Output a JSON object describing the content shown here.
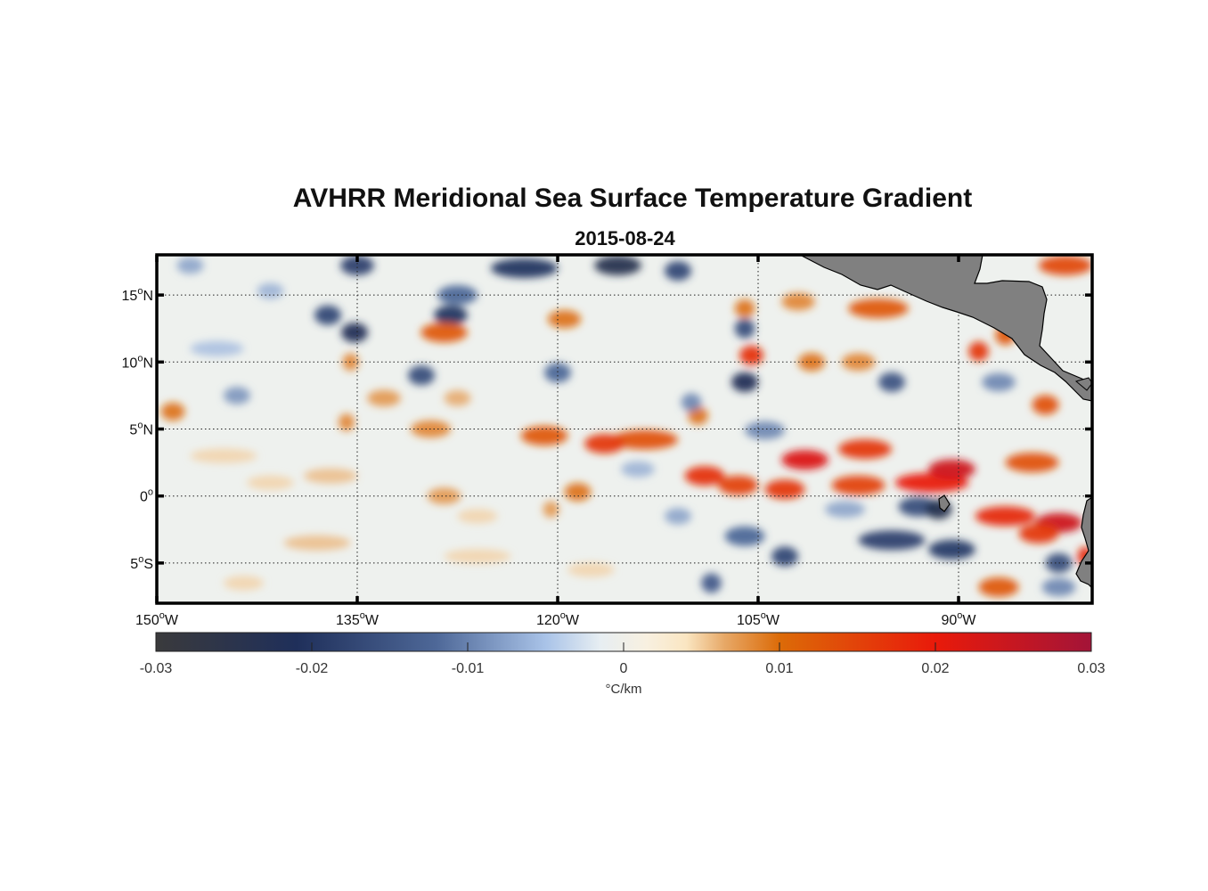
{
  "title": "AVHRR Meridional Sea Surface Temperature Gradient",
  "subtitle": "2015-08-24",
  "map": {
    "lon_range": [
      -150,
      -80
    ],
    "lat_range": [
      -8,
      18
    ],
    "lat_ticks": [
      {
        "value": 15,
        "num": "15",
        "hemi": "N"
      },
      {
        "value": 10,
        "num": "10",
        "hemi": "N"
      },
      {
        "value": 5,
        "num": "5",
        "hemi": "N"
      },
      {
        "value": 0,
        "num": "0",
        "hemi": ""
      },
      {
        "value": -5,
        "num": "5",
        "hemi": "S"
      }
    ],
    "lon_ticks": [
      {
        "value": -150,
        "num": "150",
        "hemi": "W"
      },
      {
        "value": -135,
        "num": "135",
        "hemi": "W"
      },
      {
        "value": -120,
        "num": "120",
        "hemi": "W"
      },
      {
        "value": -105,
        "num": "105",
        "hemi": "W"
      },
      {
        "value": -90,
        "num": "90",
        "hemi": "W"
      }
    ],
    "degree_symbol": "o",
    "land_color": "#808080",
    "gradient_features": [
      {
        "lon": -147.5,
        "lat": 17.2,
        "len": 2.0,
        "v": -0.008
      },
      {
        "lon": -141.5,
        "lat": 15.3,
        "len": 2.0,
        "v": -0.007
      },
      {
        "lon": -135.0,
        "lat": 17.2,
        "len": 2.5,
        "v": -0.018
      },
      {
        "lon": -137.2,
        "lat": 13.5,
        "len": 2.0,
        "v": -0.017
      },
      {
        "lon": -135.2,
        "lat": 12.2,
        "len": 2.0,
        "v": -0.022
      },
      {
        "lon": -135.5,
        "lat": 10.0,
        "len": 1.2,
        "v": 0.009
      },
      {
        "lon": -127.5,
        "lat": 15.0,
        "len": 3.0,
        "v": -0.012
      },
      {
        "lon": -122.5,
        "lat": 17.0,
        "len": 5.0,
        "v": -0.02
      },
      {
        "lon": -115.5,
        "lat": 17.2,
        "len": 3.5,
        "v": -0.024
      },
      {
        "lon": -111.0,
        "lat": 16.8,
        "len": 2.0,
        "v": -0.017
      },
      {
        "lon": -128.0,
        "lat": 13.5,
        "len": 2.5,
        "v": -0.02
      },
      {
        "lon": -119.5,
        "lat": 13.2,
        "len": 2.5,
        "v": 0.01
      },
      {
        "lon": -128.5,
        "lat": 12.2,
        "len": 3.5,
        "v": 0.012
      },
      {
        "lon": -130.2,
        "lat": 9.0,
        "len": 2.0,
        "v": -0.016
      },
      {
        "lon": -120.0,
        "lat": 9.2,
        "len": 2.0,
        "v": -0.012
      },
      {
        "lon": -144.0,
        "lat": 7.5,
        "len": 2.0,
        "v": -0.009
      },
      {
        "lon": -133.0,
        "lat": 7.3,
        "len": 2.5,
        "v": 0.008
      },
      {
        "lon": -127.5,
        "lat": 7.3,
        "len": 2.0,
        "v": 0.007
      },
      {
        "lon": -148.8,
        "lat": 6.3,
        "len": 1.8,
        "v": 0.01
      },
      {
        "lon": -135.8,
        "lat": 5.5,
        "len": 1.2,
        "v": 0.009
      },
      {
        "lon": -129.5,
        "lat": 5.0,
        "len": 3.0,
        "v": 0.009
      },
      {
        "lon": -121.0,
        "lat": 4.5,
        "len": 3.5,
        "v": 0.012
      },
      {
        "lon": -113.5,
        "lat": 4.2,
        "len": 5.0,
        "v": 0.013
      },
      {
        "lon": -116.5,
        "lat": 3.9,
        "len": 3.0,
        "v": 0.016
      },
      {
        "lon": -109.5,
        "lat": 6.0,
        "len": 1.5,
        "v": 0.01
      },
      {
        "lon": -106.0,
        "lat": 14.0,
        "len": 1.5,
        "v": 0.01
      },
      {
        "lon": -106.0,
        "lat": 12.5,
        "len": 1.5,
        "v": -0.016
      },
      {
        "lon": -105.5,
        "lat": 10.5,
        "len": 1.8,
        "v": 0.017
      },
      {
        "lon": -106.0,
        "lat": 8.5,
        "len": 2.0,
        "v": -0.022
      },
      {
        "lon": -110.0,
        "lat": 7.0,
        "len": 1.5,
        "v": -0.01
      },
      {
        "lon": -102.0,
        "lat": 14.5,
        "len": 2.5,
        "v": 0.009
      },
      {
        "lon": -96.0,
        "lat": 14.0,
        "len": 4.5,
        "v": 0.012
      },
      {
        "lon": -97.5,
        "lat": 10.0,
        "len": 2.5,
        "v": 0.009
      },
      {
        "lon": -101.0,
        "lat": 10.0,
        "len": 2.0,
        "v": 0.01
      },
      {
        "lon": -95.0,
        "lat": 8.5,
        "len": 2.0,
        "v": -0.015
      },
      {
        "lon": -88.5,
        "lat": 10.8,
        "len": 1.5,
        "v": 0.016
      },
      {
        "lon": -86.5,
        "lat": 12.0,
        "len": 1.5,
        "v": 0.012
      },
      {
        "lon": -82.0,
        "lat": 17.2,
        "len": 4.0,
        "v": 0.014
      },
      {
        "lon": -87.0,
        "lat": 8.5,
        "len": 2.5,
        "v": -0.01
      },
      {
        "lon": -83.5,
        "lat": 6.8,
        "len": 2.0,
        "v": 0.013
      },
      {
        "lon": -104.5,
        "lat": 4.9,
        "len": 3.0,
        "v": -0.01
      },
      {
        "lon": -101.5,
        "lat": 2.7,
        "len": 3.5,
        "v": 0.022
      },
      {
        "lon": -97.0,
        "lat": 3.5,
        "len": 4.0,
        "v": 0.016
      },
      {
        "lon": -109.0,
        "lat": 1.5,
        "len": 3.0,
        "v": 0.017
      },
      {
        "lon": -106.5,
        "lat": 0.8,
        "len": 3.0,
        "v": 0.015
      },
      {
        "lon": -103.0,
        "lat": 0.5,
        "len": 3.0,
        "v": 0.016
      },
      {
        "lon": -92.0,
        "lat": 1.0,
        "len": 5.5,
        "v": 0.02
      },
      {
        "lon": -90.5,
        "lat": 2.0,
        "len": 3.5,
        "v": 0.024
      },
      {
        "lon": -97.5,
        "lat": 0.8,
        "len": 4.0,
        "v": 0.015
      },
      {
        "lon": -84.5,
        "lat": 2.5,
        "len": 4.0,
        "v": 0.013
      },
      {
        "lon": -86.5,
        "lat": -1.5,
        "len": 4.5,
        "v": 0.018
      },
      {
        "lon": -82.5,
        "lat": -2.0,
        "len": 3.5,
        "v": 0.024
      },
      {
        "lon": -84.0,
        "lat": -2.8,
        "len": 3.0,
        "v": 0.016
      },
      {
        "lon": -80.5,
        "lat": -4.5,
        "len": 1.2,
        "v": 0.018
      },
      {
        "lon": -93.0,
        "lat": -0.8,
        "len": 3.0,
        "v": -0.016
      },
      {
        "lon": -91.5,
        "lat": -1.0,
        "len": 2.0,
        "v": -0.024
      },
      {
        "lon": -98.5,
        "lat": -1.0,
        "len": 3.0,
        "v": -0.008
      },
      {
        "lon": -95.0,
        "lat": -3.3,
        "len": 5.0,
        "v": -0.018
      },
      {
        "lon": -90.5,
        "lat": -4.0,
        "len": 3.5,
        "v": -0.019
      },
      {
        "lon": -103.0,
        "lat": -4.5,
        "len": 2.0,
        "v": -0.017
      },
      {
        "lon": -106.0,
        "lat": -3.0,
        "len": 3.0,
        "v": -0.012
      },
      {
        "lon": -108.5,
        "lat": -6.5,
        "len": 1.5,
        "v": -0.014
      },
      {
        "lon": -82.5,
        "lat": -5.0,
        "len": 2.0,
        "v": -0.016
      },
      {
        "lon": -82.5,
        "lat": -6.8,
        "len": 2.5,
        "v": -0.01
      },
      {
        "lon": -87.0,
        "lat": -6.8,
        "len": 3.0,
        "v": 0.012
      },
      {
        "lon": -118.5,
        "lat": 0.3,
        "len": 2.0,
        "v": 0.01
      },
      {
        "lon": -120.5,
        "lat": -1.0,
        "len": 1.2,
        "v": 0.008
      },
      {
        "lon": -128.5,
        "lat": 0.0,
        "len": 2.5,
        "v": 0.008
      },
      {
        "lon": -126.0,
        "lat": -1.5,
        "len": 3.0,
        "v": 0.005
      },
      {
        "lon": -137.0,
        "lat": 1.5,
        "len": 4.0,
        "v": 0.006
      },
      {
        "lon": -138.0,
        "lat": -3.5,
        "len": 5.0,
        "v": 0.006
      },
      {
        "lon": -126.0,
        "lat": -4.5,
        "len": 5.0,
        "v": 0.005
      },
      {
        "lon": -117.5,
        "lat": -5.5,
        "len": 3.5,
        "v": 0.005
      },
      {
        "lon": -111.0,
        "lat": -1.5,
        "len": 2.0,
        "v": -0.008
      },
      {
        "lon": -114.0,
        "lat": 2.0,
        "len": 2.5,
        "v": -0.007
      },
      {
        "lon": -145.0,
        "lat": 3.0,
        "len": 5.0,
        "v": 0.005
      },
      {
        "lon": -145.5,
        "lat": 11.0,
        "len": 4.0,
        "v": -0.006
      },
      {
        "lon": -141.5,
        "lat": 1.0,
        "len": 3.5,
        "v": 0.005
      },
      {
        "lon": -143.5,
        "lat": -6.5,
        "len": 3.0,
        "v": 0.005
      }
    ]
  },
  "colorbar": {
    "min": -0.03,
    "max": 0.03,
    "tick_labels": [
      "-0.03",
      "-0.02",
      "-0.01",
      "0",
      "0.01",
      "0.02",
      "0.03"
    ],
    "tick_values": [
      -0.03,
      -0.02,
      -0.01,
      0,
      0.01,
      0.02,
      0.03
    ],
    "unit_label": "°C/km",
    "stops": [
      {
        "v": -0.03,
        "color": "#3a3a3c"
      },
      {
        "v": -0.021,
        "color": "#1f2f5a"
      },
      {
        "v": -0.012,
        "color": "#4e6898"
      },
      {
        "v": -0.005,
        "color": "#a9c3e8"
      },
      {
        "v": -0.0015,
        "color": "#e7eef2"
      },
      {
        "v": 0.0015,
        "color": "#f8f0e0"
      },
      {
        "v": 0.004,
        "color": "#fae6c2"
      },
      {
        "v": 0.0065,
        "color": "#e7a866"
      },
      {
        "v": 0.01,
        "color": "#dc6b08"
      },
      {
        "v": 0.02,
        "color": "#e91a0a"
      },
      {
        "v": 0.03,
        "color": "#a31438"
      }
    ]
  }
}
